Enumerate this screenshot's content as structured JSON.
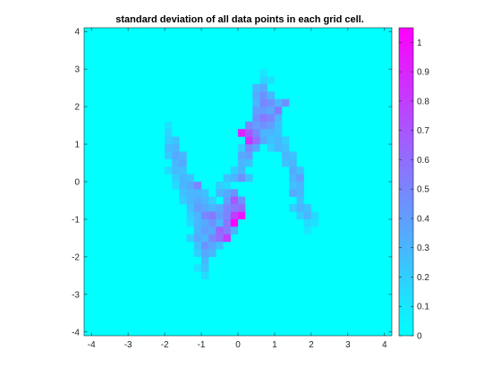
{
  "chart_data": {
    "type": "heatmap",
    "title": "standard deviation of all data points in each grid cell.",
    "xlabel": "",
    "ylabel": "",
    "xlim": [
      -4.2,
      4.2
    ],
    "ylim": [
      -4.1,
      4.1
    ],
    "xticks": [
      -4,
      -3,
      -2,
      -1,
      0,
      1,
      2,
      3,
      4
    ],
    "xtick_labels": [
      "-4",
      "-3",
      "-2",
      "-1",
      "0",
      "1",
      "2",
      "3",
      "4"
    ],
    "yticks": [
      -4,
      -3,
      -2,
      -1,
      0,
      1,
      2,
      3,
      4
    ],
    "ytick_labels": [
      "-4",
      "-3",
      "-2",
      "-1",
      "0",
      "1",
      "2",
      "3",
      "4"
    ],
    "cell_size": 0.2,
    "background_value": 0.0,
    "colormap": "cool",
    "color_low": "#00ffff",
    "color_high": "#ff00ff",
    "colorbar": {
      "range": [
        0,
        1.05
      ],
      "ticks": [
        0,
        0.1,
        0.2,
        0.3,
        0.4,
        0.5,
        0.6,
        0.7,
        0.8,
        0.9,
        1
      ],
      "tick_labels": [
        "0",
        "0.1",
        "0.2",
        "0.3",
        "0.4",
        "0.5",
        "0.6",
        "0.7",
        "0.8",
        "0.9",
        "1"
      ]
    },
    "grid": false,
    "cells": [
      [
        -2.0,
        1.4,
        0.12
      ],
      [
        -2.0,
        1.2,
        0.18
      ],
      [
        -2.0,
        1.0,
        0.2
      ],
      [
        -1.8,
        1.0,
        0.25
      ],
      [
        -2.0,
        0.8,
        0.28
      ],
      [
        -1.8,
        0.8,
        0.3
      ],
      [
        -2.0,
        0.6,
        0.22
      ],
      [
        -1.8,
        0.6,
        0.35
      ],
      [
        -1.6,
        0.6,
        0.3
      ],
      [
        -1.8,
        0.4,
        0.3
      ],
      [
        -1.6,
        0.4,
        0.35
      ],
      [
        -2.0,
        0.2,
        0.15
      ],
      [
        -1.8,
        0.2,
        0.28
      ],
      [
        -1.6,
        0.2,
        0.25
      ],
      [
        -1.8,
        0.0,
        0.2
      ],
      [
        -1.6,
        0.0,
        0.3
      ],
      [
        -1.4,
        0.0,
        0.25
      ],
      [
        -1.8,
        -0.2,
        0.15
      ],
      [
        -1.6,
        -0.2,
        0.3
      ],
      [
        -1.4,
        -0.2,
        0.35
      ],
      [
        -1.2,
        -0.2,
        0.5
      ],
      [
        -1.6,
        -0.4,
        0.25
      ],
      [
        -1.4,
        -0.4,
        0.3
      ],
      [
        -1.2,
        -0.4,
        0.3
      ],
      [
        -1.0,
        -0.4,
        0.25
      ],
      [
        -1.6,
        -0.6,
        0.2
      ],
      [
        -1.4,
        -0.6,
        0.3
      ],
      [
        -1.2,
        -0.6,
        0.35
      ],
      [
        -1.0,
        -0.6,
        0.3
      ],
      [
        -0.8,
        -0.6,
        0.2
      ],
      [
        -1.4,
        -0.8,
        0.25
      ],
      [
        -1.2,
        -0.8,
        0.4
      ],
      [
        -1.0,
        -0.8,
        0.35
      ],
      [
        -0.8,
        -0.8,
        0.3
      ],
      [
        -0.6,
        -0.8,
        0.35
      ],
      [
        -0.4,
        -0.8,
        0.5
      ],
      [
        -1.4,
        -1.0,
        0.2
      ],
      [
        -1.2,
        -1.0,
        0.3
      ],
      [
        -1.0,
        -1.0,
        0.5
      ],
      [
        -0.8,
        -1.0,
        0.55
      ],
      [
        -0.6,
        -1.0,
        0.4
      ],
      [
        -0.4,
        -1.0,
        0.5
      ],
      [
        -0.2,
        -1.0,
        0.8
      ],
      [
        0.0,
        -1.0,
        0.95
      ],
      [
        -1.4,
        -1.2,
        0.15
      ],
      [
        -1.2,
        -1.2,
        0.3
      ],
      [
        -1.0,
        -1.2,
        0.35
      ],
      [
        -0.8,
        -1.2,
        0.45
      ],
      [
        -0.6,
        -1.2,
        0.3
      ],
      [
        -0.4,
        -1.2,
        0.55
      ],
      [
        -0.2,
        -1.2,
        1.05
      ],
      [
        -1.2,
        -1.4,
        0.3
      ],
      [
        -1.0,
        -1.4,
        0.4
      ],
      [
        -0.8,
        -1.4,
        0.35
      ],
      [
        -0.6,
        -1.4,
        0.65
      ],
      [
        -0.4,
        -1.4,
        0.55
      ],
      [
        -0.2,
        -1.4,
        0.3
      ],
      [
        -1.4,
        -1.6,
        0.2
      ],
      [
        -1.2,
        -1.6,
        0.35
      ],
      [
        -1.0,
        -1.6,
        0.3
      ],
      [
        -0.8,
        -1.6,
        0.5
      ],
      [
        -0.6,
        -1.6,
        0.6
      ],
      [
        -0.4,
        -1.6,
        0.8
      ],
      [
        -1.2,
        -1.8,
        0.25
      ],
      [
        -1.0,
        -1.8,
        0.45
      ],
      [
        -0.8,
        -1.8,
        0.35
      ],
      [
        -0.6,
        -1.8,
        0.25
      ],
      [
        -1.2,
        -2.0,
        0.2
      ],
      [
        -1.0,
        -2.0,
        0.35
      ],
      [
        -0.8,
        -2.0,
        0.3
      ],
      [
        -1.0,
        -2.2,
        0.3
      ],
      [
        -1.2,
        -2.4,
        0.12
      ],
      [
        -1.0,
        -2.4,
        0.25
      ],
      [
        -1.0,
        -2.6,
        0.15
      ],
      [
        -0.6,
        -0.2,
        0.2
      ],
      [
        -0.4,
        -0.2,
        0.15
      ],
      [
        -0.6,
        -0.4,
        0.3
      ],
      [
        -0.4,
        -0.4,
        0.35
      ],
      [
        -0.2,
        -0.4,
        0.45
      ],
      [
        -0.4,
        -0.6,
        0.4
      ],
      [
        -0.2,
        -0.6,
        0.7
      ],
      [
        0.0,
        -0.6,
        0.45
      ],
      [
        -0.2,
        -0.8,
        0.55
      ],
      [
        0.0,
        -0.8,
        0.6
      ],
      [
        -0.4,
        0.0,
        0.25
      ],
      [
        -0.2,
        0.0,
        0.3
      ],
      [
        -0.2,
        0.2,
        0.2
      ],
      [
        0.0,
        0.2,
        0.3
      ],
      [
        0.0,
        0.0,
        0.45
      ],
      [
        0.2,
        0.0,
        0.25
      ],
      [
        0.0,
        0.4,
        0.3
      ],
      [
        0.2,
        0.4,
        0.25
      ],
      [
        0.0,
        0.6,
        0.35
      ],
      [
        0.2,
        0.6,
        0.4
      ],
      [
        0.0,
        0.8,
        0.2
      ],
      [
        0.2,
        0.8,
        0.5
      ],
      [
        0.4,
        0.8,
        0.35
      ],
      [
        0.2,
        1.0,
        0.85
      ],
      [
        0.4,
        1.0,
        0.6
      ],
      [
        0.6,
        1.0,
        0.35
      ],
      [
        0.0,
        1.2,
        0.9
      ],
      [
        0.2,
        1.2,
        0.7
      ],
      [
        0.4,
        1.2,
        0.5
      ],
      [
        0.6,
        1.2,
        0.3
      ],
      [
        0.8,
        1.2,
        0.3
      ],
      [
        0.2,
        1.4,
        0.5
      ],
      [
        0.4,
        1.4,
        0.4
      ],
      [
        0.6,
        1.4,
        0.45
      ],
      [
        0.8,
        1.4,
        0.4
      ],
      [
        1.0,
        1.4,
        0.25
      ],
      [
        0.4,
        1.6,
        0.45
      ],
      [
        0.6,
        1.6,
        0.55
      ],
      [
        0.8,
        1.6,
        0.5
      ],
      [
        1.0,
        1.6,
        0.3
      ],
      [
        0.4,
        1.8,
        0.4
      ],
      [
        0.6,
        1.8,
        0.4
      ],
      [
        0.8,
        1.8,
        0.35
      ],
      [
        1.0,
        1.8,
        0.55
      ],
      [
        0.4,
        2.0,
        0.3
      ],
      [
        0.6,
        2.0,
        0.5
      ],
      [
        0.8,
        2.0,
        0.45
      ],
      [
        1.0,
        2.0,
        0.3
      ],
      [
        1.2,
        2.0,
        0.45
      ],
      [
        0.4,
        2.2,
        0.35
      ],
      [
        0.6,
        2.2,
        0.45
      ],
      [
        0.8,
        2.2,
        0.3
      ],
      [
        0.4,
        2.4,
        0.3
      ],
      [
        0.6,
        2.4,
        0.35
      ],
      [
        0.6,
        2.6,
        0.18
      ],
      [
        0.8,
        2.6,
        0.12
      ],
      [
        0.6,
        2.8,
        0.1
      ],
      [
        0.8,
        1.0,
        0.25
      ],
      [
        1.0,
        1.0,
        0.3
      ],
      [
        1.0,
        1.2,
        0.25
      ],
      [
        1.2,
        1.0,
        0.2
      ],
      [
        0.8,
        0.8,
        0.2
      ],
      [
        1.0,
        0.8,
        0.3
      ],
      [
        1.2,
        0.8,
        0.25
      ],
      [
        1.2,
        0.6,
        0.3
      ],
      [
        1.4,
        0.6,
        0.25
      ],
      [
        1.2,
        0.4,
        0.25
      ],
      [
        1.4,
        0.4,
        0.3
      ],
      [
        1.4,
        0.2,
        0.35
      ],
      [
        1.6,
        0.2,
        0.25
      ],
      [
        1.4,
        0.0,
        0.3
      ],
      [
        1.6,
        0.0,
        0.4
      ],
      [
        1.4,
        -0.2,
        0.25
      ],
      [
        1.6,
        -0.2,
        0.3
      ],
      [
        1.4,
        -0.4,
        0.35
      ],
      [
        1.6,
        -0.4,
        0.3
      ],
      [
        1.6,
        -0.6,
        0.25
      ],
      [
        1.4,
        -0.8,
        0.2
      ],
      [
        1.6,
        -0.8,
        0.3
      ],
      [
        1.8,
        -0.8,
        0.25
      ],
      [
        1.6,
        -1.0,
        0.2
      ],
      [
        1.8,
        -1.0,
        0.3
      ],
      [
        2.0,
        -1.0,
        0.15
      ],
      [
        1.8,
        -1.2,
        0.15
      ],
      [
        2.0,
        -1.2,
        0.12
      ],
      [
        1.8,
        -1.4,
        0.1
      ]
    ]
  }
}
